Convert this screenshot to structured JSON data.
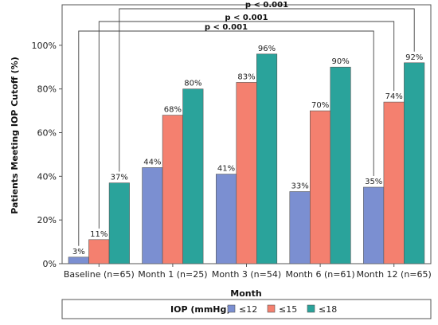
{
  "chart_data": {
    "type": "bar",
    "xlabel": "Month",
    "ylabel": "Patients Meeting IOP Cutoff (%)",
    "ylim": [
      0,
      120
    ],
    "yticks": [
      0,
      20,
      40,
      60,
      80,
      100
    ],
    "ytick_labels": [
      "0%",
      "20%",
      "40%",
      "60%",
      "80%",
      "100%"
    ],
    "categories": [
      "Baseline (n=65)",
      "Month 1 (n=25)",
      "Month 3 (n=54)",
      "Month 6 (n=61)",
      "Month 12 (n=65)"
    ],
    "series": [
      {
        "name": "≤12",
        "color": "#7b8fd1",
        "values": [
          3,
          44,
          41,
          33,
          35
        ],
        "labels": [
          "3%",
          "44%",
          "41%",
          "33%",
          "35%"
        ]
      },
      {
        "name": "≤15",
        "color": "#f4806f",
        "values": [
          11,
          68,
          83,
          70,
          74
        ],
        "labels": [
          "11%",
          "68%",
          "83%",
          "70%",
          "74%"
        ]
      },
      {
        "name": "≤18",
        "color": "#2aa39b",
        "values": [
          37,
          80,
          96,
          90,
          92
        ],
        "labels": [
          "37%",
          "80%",
          "96%",
          "90%",
          "92%"
        ]
      }
    ],
    "legend": {
      "title": "IOP (mmHg)",
      "placement": "bottom"
    },
    "annotations": [
      {
        "text": "p < 0.001",
        "from": {
          "category": 0,
          "series": 2
        },
        "to": {
          "category": 4,
          "series": 2
        }
      },
      {
        "text": "p < 0.001",
        "from": {
          "category": 0,
          "series": 1
        },
        "to": {
          "category": 4,
          "series": 1
        }
      },
      {
        "text": "p < 0.001",
        "from": {
          "category": 0,
          "series": 0
        },
        "to": {
          "category": 4,
          "series": 0
        }
      }
    ],
    "grid": false
  }
}
